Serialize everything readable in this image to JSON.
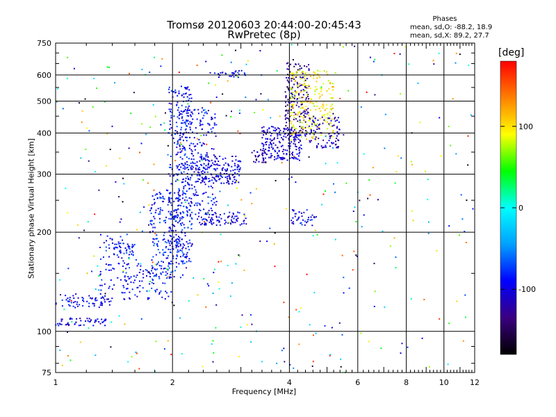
{
  "chart_data": {
    "type": "scatter",
    "title": "Tromsø 20120603 20:44:00-20:45:43",
    "subtitle": "RwPretec (8p)",
    "xlabel": "Frequency [MHz]",
    "ylabel": "Stationary phase Virtual Height [km]",
    "x_scale": "log",
    "y_scale": "log",
    "xlim": [
      1,
      12
    ],
    "ylim": [
      75,
      750
    ],
    "x_ticks": [
      1,
      2,
      4,
      6,
      8,
      10,
      12
    ],
    "y_ticks": [
      75,
      100,
      200,
      300,
      400,
      500,
      600,
      750
    ],
    "grid": true,
    "phases_box": {
      "title": "Phases",
      "o_line": "mean, sd,O: -88.2, 18.9",
      "x_line": "mean, sd,X:  89.2, 27.7"
    },
    "colorbar": {
      "label": "[deg]",
      "ticks": [
        100,
        0,
        -100
      ],
      "range": [
        -180,
        180
      ],
      "colors": [
        "#000000",
        "#3a0080",
        "#0000ff",
        "#00a0ff",
        "#00ffff",
        "#00ff00",
        "#ffff00",
        "#ff8000",
        "#ff0000"
      ]
    },
    "clusters": [
      {
        "x": [
          1.0,
          1.4
        ],
        "y": [
          118,
          130
        ],
        "n": 70,
        "phase": -95
      },
      {
        "x": [
          1.0,
          1.35
        ],
        "y": [
          104,
          110
        ],
        "n": 55,
        "phase": -100
      },
      {
        "x": [
          1.3,
          1.55
        ],
        "y": [
          130,
          200
        ],
        "n": 70,
        "phase": -90
      },
      {
        "x": [
          1.4,
          1.6
        ],
        "y": [
          170,
          185
        ],
        "n": 35,
        "phase": -90
      },
      {
        "x": [
          1.5,
          2.0
        ],
        "y": [
          125,
          165
        ],
        "n": 90,
        "phase": -88
      },
      {
        "x": [
          1.75,
          2.15
        ],
        "y": [
          145,
          270
        ],
        "n": 200,
        "phase": -85
      },
      {
        "x": [
          1.95,
          2.25
        ],
        "y": [
          160,
          560
        ],
        "n": 300,
        "phase": -90
      },
      {
        "x": [
          2.05,
          2.6
        ],
        "y": [
          210,
          480
        ],
        "n": 260,
        "phase": -92
      },
      {
        "x": [
          2.3,
          3.0
        ],
        "y": [
          280,
          340
        ],
        "n": 160,
        "phase": -100
      },
      {
        "x": [
          2.4,
          3.1
        ],
        "y": [
          210,
          230
        ],
        "n": 70,
        "phase": -100
      },
      {
        "x": [
          2.5,
          3.1
        ],
        "y": [
          590,
          620
        ],
        "n": 30,
        "phase": -95
      },
      {
        "x": [
          3.2,
          3.5
        ],
        "y": [
          325,
          360
        ],
        "n": 30,
        "phase": -130
      },
      {
        "x": [
          3.4,
          4.3
        ],
        "y": [
          330,
          420
        ],
        "n": 200,
        "phase": -105
      },
      {
        "x": [
          3.9,
          4.5
        ],
        "y": [
          390,
          660
        ],
        "n": 170,
        "phase": -130
      },
      {
        "x": [
          4.0,
          5.2
        ],
        "y": [
          380,
          620
        ],
        "n": 230,
        "phase": 95
      },
      {
        "x": [
          4.5,
          5.4
        ],
        "y": [
          360,
          450
        ],
        "n": 90,
        "phase": -110
      },
      {
        "x": [
          4.0,
          4.7
        ],
        "y": [
          210,
          235
        ],
        "n": 40,
        "phase": -95
      }
    ]
  }
}
